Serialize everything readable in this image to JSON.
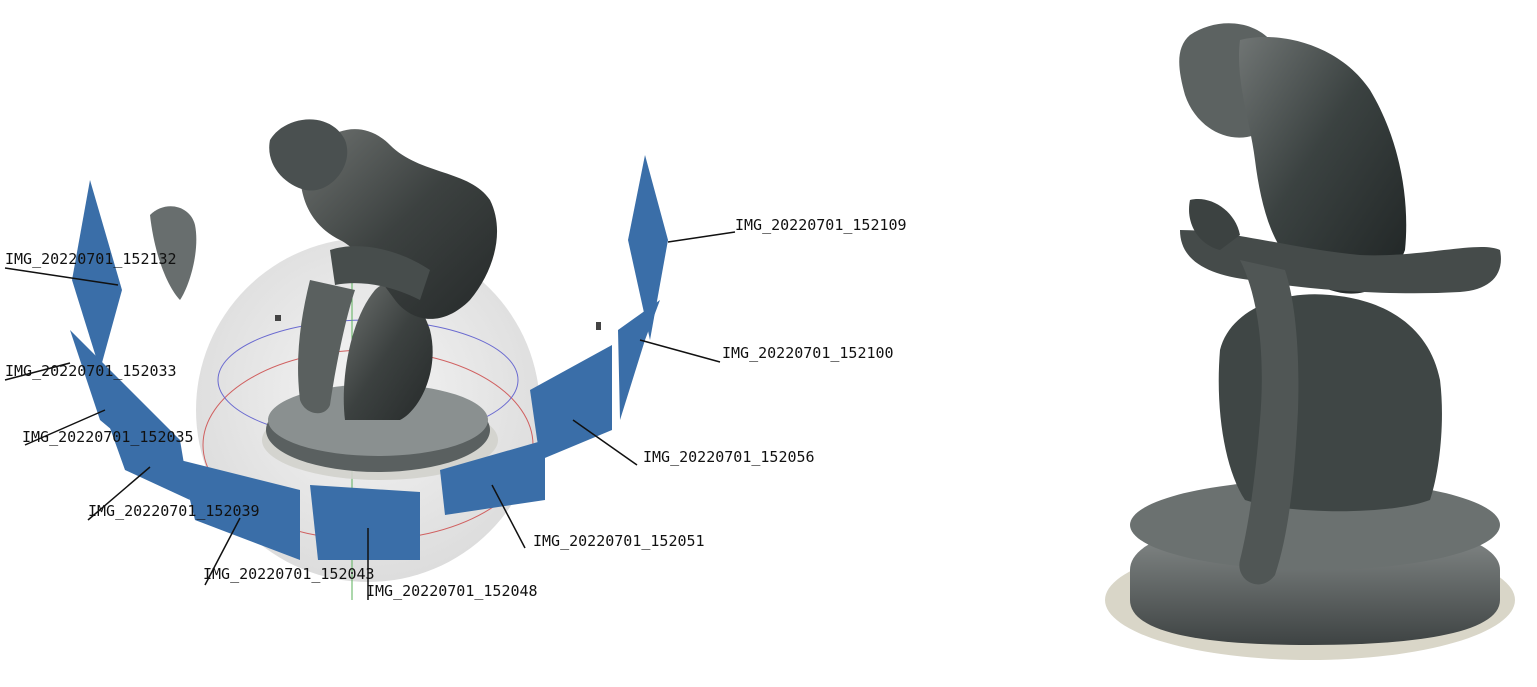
{
  "scene": {
    "camera_labels": [
      "IMG_20220701_152132",
      "IMG_20220701_152033",
      "IMG_20220701_152035",
      "IMG_20220701_152039",
      "IMG_20220701_152043",
      "IMG_20220701_152048",
      "IMG_20220701_152051",
      "IMG_20220701_152056",
      "IMG_20220701_152100",
      "IMG_20220701_152109"
    ]
  },
  "colors": {
    "camera_frustum": "#3a6ea8",
    "statue_bronze": "#3d4443",
    "pedestal": "#4b5050",
    "sphere_guide": "#d8d8d8"
  }
}
